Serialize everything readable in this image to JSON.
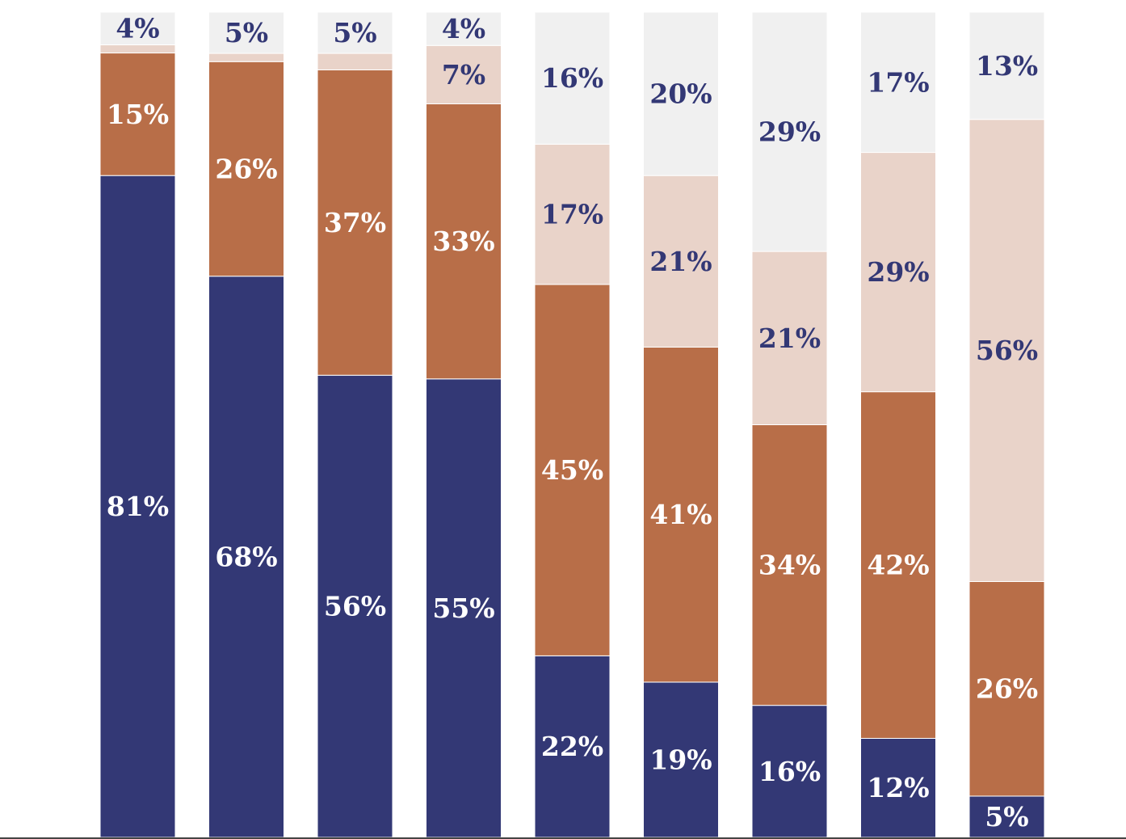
{
  "chart_data": {
    "type": "bar",
    "stacked": true,
    "orientation": "vertical",
    "normalized_to_100": true,
    "categories": [
      "",
      "",
      "",
      "",
      "",
      "",
      "",
      "",
      ""
    ],
    "series": [
      {
        "values": [
          81,
          68,
          56,
          55,
          22,
          19,
          16,
          12,
          5
        ],
        "color": "#333875",
        "label_color": "#ffffff"
      },
      {
        "values": [
          15,
          26,
          37,
          33,
          45,
          41,
          34,
          42,
          26
        ],
        "color": "#b86e48",
        "label_color": "#ffffff"
      },
      {
        "values": [
          1,
          1,
          2,
          7,
          17,
          21,
          21,
          29,
          56
        ],
        "color": "#e9d3c9",
        "label_color": "#333875"
      },
      {
        "values": [
          4,
          5,
          5,
          4,
          16,
          20,
          29,
          17,
          13
        ],
        "color": "#f0f0f0",
        "label_color": "#333875"
      }
    ],
    "data_labels": [
      [
        "81%",
        "68%",
        "56%",
        "55%",
        "22%",
        "19%",
        "16%",
        "12%",
        "5%"
      ],
      [
        "15%",
        "26%",
        "37%",
        "33%",
        "45%",
        "41%",
        "34%",
        "42%",
        "26%"
      ],
      [
        "",
        "",
        "",
        "7%",
        "17%",
        "21%",
        "21%",
        "29%",
        "56%"
      ],
      [
        "4%",
        "5%",
        "5%",
        "4%",
        "16%",
        "20%",
        "29%",
        "17%",
        "13%"
      ]
    ],
    "ylim": [
      0,
      100
    ],
    "grid": false,
    "legend": "none",
    "title": "",
    "xlabel": "",
    "ylabel": "",
    "baseline_color": "#444444"
  }
}
